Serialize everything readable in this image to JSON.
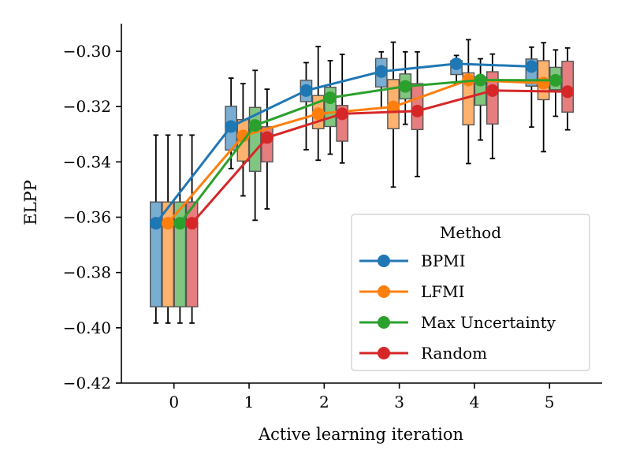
{
  "chart_data": {
    "type": "line",
    "title": "",
    "xlabel": "Active learning iteration",
    "ylabel": "ELPP",
    "x": [
      0,
      1,
      2,
      3,
      4,
      5
    ],
    "xlim": [
      -0.7,
      5.7
    ],
    "ylim": [
      -0.42,
      -0.29
    ],
    "xticks": [
      0,
      1,
      2,
      3,
      4,
      5
    ],
    "xtick_labels": [
      "0",
      "1",
      "2",
      "3",
      "4",
      "5"
    ],
    "yticks": [
      -0.42,
      -0.4,
      -0.38,
      -0.36,
      -0.34,
      -0.32,
      -0.3
    ],
    "ytick_labels": [
      "−0.42",
      "−0.40",
      "−0.38",
      "−0.36",
      "−0.34",
      "−0.32",
      "−0.30"
    ],
    "grid": false,
    "legend": {
      "title": "Method",
      "placement": "lower-right"
    },
    "series": [
      {
        "name": "BPMI",
        "color": "#1f77b4",
        "values": [
          -0.3622,
          -0.3272,
          -0.3142,
          -0.3073,
          -0.3045,
          -0.3055
        ],
        "box": {
          "q1": [
            -0.3924,
            -0.3357,
            -0.3182,
            -0.3129,
            -0.3084,
            -0.3126
          ],
          "q3": [
            -0.3545,
            -0.3199,
            -0.3105,
            -0.3026,
            -0.3034,
            -0.3028
          ],
          "median": [
            -0.3625,
            -0.3272,
            -0.3135,
            -0.3075,
            -0.3048,
            -0.3058
          ],
          "whislo": [
            -0.3983,
            -0.3424,
            -0.3356,
            -0.3205,
            -0.3117,
            -0.3274
          ],
          "whishi": [
            -0.3303,
            -0.3097,
            -0.3041,
            -0.3002,
            -0.3015,
            -0.2985
          ]
        }
      },
      {
        "name": "LFMI",
        "color": "#ff7f0e",
        "values": [
          -0.3622,
          -0.3306,
          -0.3226,
          -0.3201,
          -0.3104,
          -0.3115
        ],
        "box": {
          "q1": [
            -0.3924,
            -0.3397,
            -0.328,
            -0.328,
            -0.3266,
            -0.3175
          ],
          "q3": [
            -0.3545,
            -0.3247,
            -0.316,
            -0.3102,
            -0.3078,
            -0.3034
          ],
          "median": [
            -0.3625,
            -0.3308,
            -0.3228,
            -0.32,
            -0.3104,
            -0.3118
          ],
          "whislo": [
            -0.3983,
            -0.3523,
            -0.3394,
            -0.3491,
            -0.3406,
            -0.3363
          ],
          "whishi": [
            -0.3303,
            -0.3117,
            -0.2983,
            -0.2967,
            -0.2958,
            -0.2969
          ]
        }
      },
      {
        "name": "Max Uncertainty",
        "color": "#2ca02c",
        "values": [
          -0.3622,
          -0.3268,
          -0.3168,
          -0.3127,
          -0.3104,
          -0.3105
        ],
        "box": {
          "q1": [
            -0.3924,
            -0.3434,
            -0.3272,
            -0.3172,
            -0.3195,
            -0.3139
          ],
          "q3": [
            -0.3545,
            -0.3203,
            -0.313,
            -0.3082,
            -0.3093,
            -0.3058
          ],
          "median": [
            -0.3625,
            -0.3272,
            -0.3166,
            -0.3127,
            -0.3106,
            -0.3108
          ],
          "whislo": [
            -0.3983,
            -0.3611,
            -0.3372,
            -0.3264,
            -0.3321,
            -0.3235
          ],
          "whishi": [
            -0.3303,
            -0.3069,
            -0.3034,
            -0.3002,
            -0.3027,
            -0.2995
          ]
        }
      },
      {
        "name": "Random",
        "color": "#d62728",
        "values": [
          -0.3622,
          -0.3312,
          -0.3226,
          -0.3216,
          -0.3142,
          -0.3146
        ],
        "box": {
          "q1": [
            -0.3924,
            -0.34,
            -0.3325,
            -0.3283,
            -0.3263,
            -0.322
          ],
          "q3": [
            -0.3545,
            -0.3273,
            -0.3196,
            -0.3117,
            -0.3074,
            -0.3036
          ],
          "median": [
            -0.3625,
            -0.3315,
            -0.3225,
            -0.3216,
            -0.3145,
            -0.3146
          ],
          "whislo": [
            -0.3983,
            -0.357,
            -0.3404,
            -0.3453,
            -0.3388,
            -0.3284
          ],
          "whishi": [
            -0.3303,
            -0.3137,
            -0.3011,
            -0.3002,
            -0.301,
            -0.2988
          ]
        }
      }
    ]
  }
}
